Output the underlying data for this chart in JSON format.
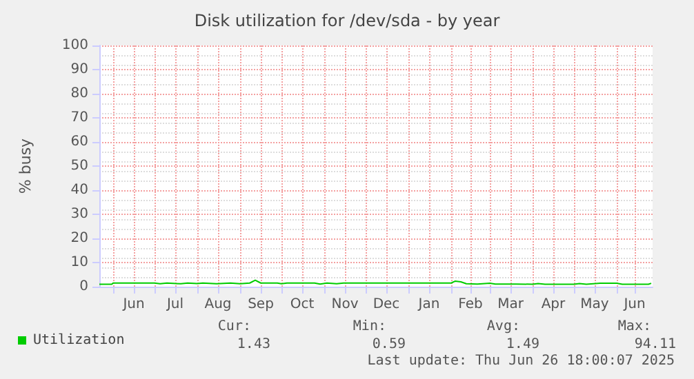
{
  "chart_data": {
    "type": "line",
    "title": "Disk utilization for /dev/sda - by year",
    "ylabel": "% busy",
    "xlim": [
      "2024-05-22",
      "2025-06-27"
    ],
    "xticks": [
      {
        "value": "2024-06-01",
        "label": null
      },
      {
        "value": "2024-06-16",
        "label": "Jun"
      },
      {
        "value": "2024-07-01",
        "label": null
      },
      {
        "value": "2024-07-16",
        "label": "Jul"
      },
      {
        "value": "2024-08-01",
        "label": null
      },
      {
        "value": "2024-08-16",
        "label": "Aug"
      },
      {
        "value": "2024-09-01",
        "label": null
      },
      {
        "value": "2024-09-16",
        "label": "Sep"
      },
      {
        "value": "2024-10-01",
        "label": null
      },
      {
        "value": "2024-10-16",
        "label": "Oct"
      },
      {
        "value": "2024-11-01",
        "label": null
      },
      {
        "value": "2024-11-16",
        "label": "Nov"
      },
      {
        "value": "2024-12-01",
        "label": null
      },
      {
        "value": "2024-12-16",
        "label": "Dec"
      },
      {
        "value": "2025-01-01",
        "label": null
      },
      {
        "value": "2025-01-16",
        "label": "Jan"
      },
      {
        "value": "2025-02-01",
        "label": null
      },
      {
        "value": "2025-02-15",
        "label": "Feb"
      },
      {
        "value": "2025-03-01",
        "label": null
      },
      {
        "value": "2025-03-16",
        "label": "Mar"
      },
      {
        "value": "2025-04-01",
        "label": null
      },
      {
        "value": "2025-04-16",
        "label": "Apr"
      },
      {
        "value": "2025-05-01",
        "label": null
      },
      {
        "value": "2025-05-16",
        "label": "May"
      },
      {
        "value": "2025-06-01",
        "label": null
      },
      {
        "value": "2025-06-14",
        "label": "Jun"
      }
    ],
    "ylim": [
      0,
      100
    ],
    "yticks": [
      0,
      10,
      20,
      30,
      40,
      50,
      60,
      70,
      80,
      90,
      100
    ],
    "grid": true,
    "legend": "bottom left",
    "marker": "none",
    "line_style": "solid",
    "x": [
      "2024-05-22",
      "2024-05-31",
      "2024-06-01",
      "2024-07-01",
      "2024-07-05",
      "2024-07-10",
      "2024-07-20",
      "2024-07-25",
      "2024-08-01",
      "2024-08-05",
      "2024-08-15",
      "2024-08-25",
      "2024-09-01",
      "2024-09-08",
      "2024-09-12",
      "2024-09-16",
      "2024-09-28",
      "2024-10-01",
      "2024-10-05",
      "2024-10-25",
      "2024-10-29",
      "2024-11-03",
      "2024-11-10",
      "2024-11-15",
      "2024-12-15",
      "2025-01-15",
      "2025-02-01",
      "2025-02-04",
      "2025-02-08",
      "2025-02-12",
      "2025-02-20",
      "2025-03-01",
      "2025-03-05",
      "2025-03-20",
      "2025-04-01",
      "2025-04-05",
      "2025-04-10",
      "2025-05-01",
      "2025-05-05",
      "2025-05-10",
      "2025-05-20",
      "2025-06-01",
      "2025-06-05",
      "2025-06-24",
      "2025-06-26"
    ],
    "series": [
      {
        "name": "Utilization",
        "color": "#00cc00",
        "values": [
          1.0,
          1.0,
          1.5,
          1.5,
          1.2,
          1.5,
          1.2,
          1.5,
          1.3,
          1.5,
          1.2,
          1.5,
          1.2,
          1.5,
          2.7,
          1.5,
          1.5,
          1.2,
          1.5,
          1.5,
          1.1,
          1.5,
          1.2,
          1.5,
          1.5,
          1.5,
          1.5,
          2.3,
          2.0,
          1.2,
          1.1,
          1.4,
          1.1,
          1.1,
          1.0,
          1.3,
          1.0,
          1.0,
          1.3,
          1.0,
          1.4,
          1.4,
          1.0,
          1.0,
          1.4
        ]
      }
    ],
    "annotations": [
      "Cur:",
      "Min:",
      "Avg:",
      "Max:",
      "1.43",
      "0.59",
      "1.49",
      "94.11",
      "Last update: Thu Jun 26 18:00:07 2025"
    ]
  }
}
